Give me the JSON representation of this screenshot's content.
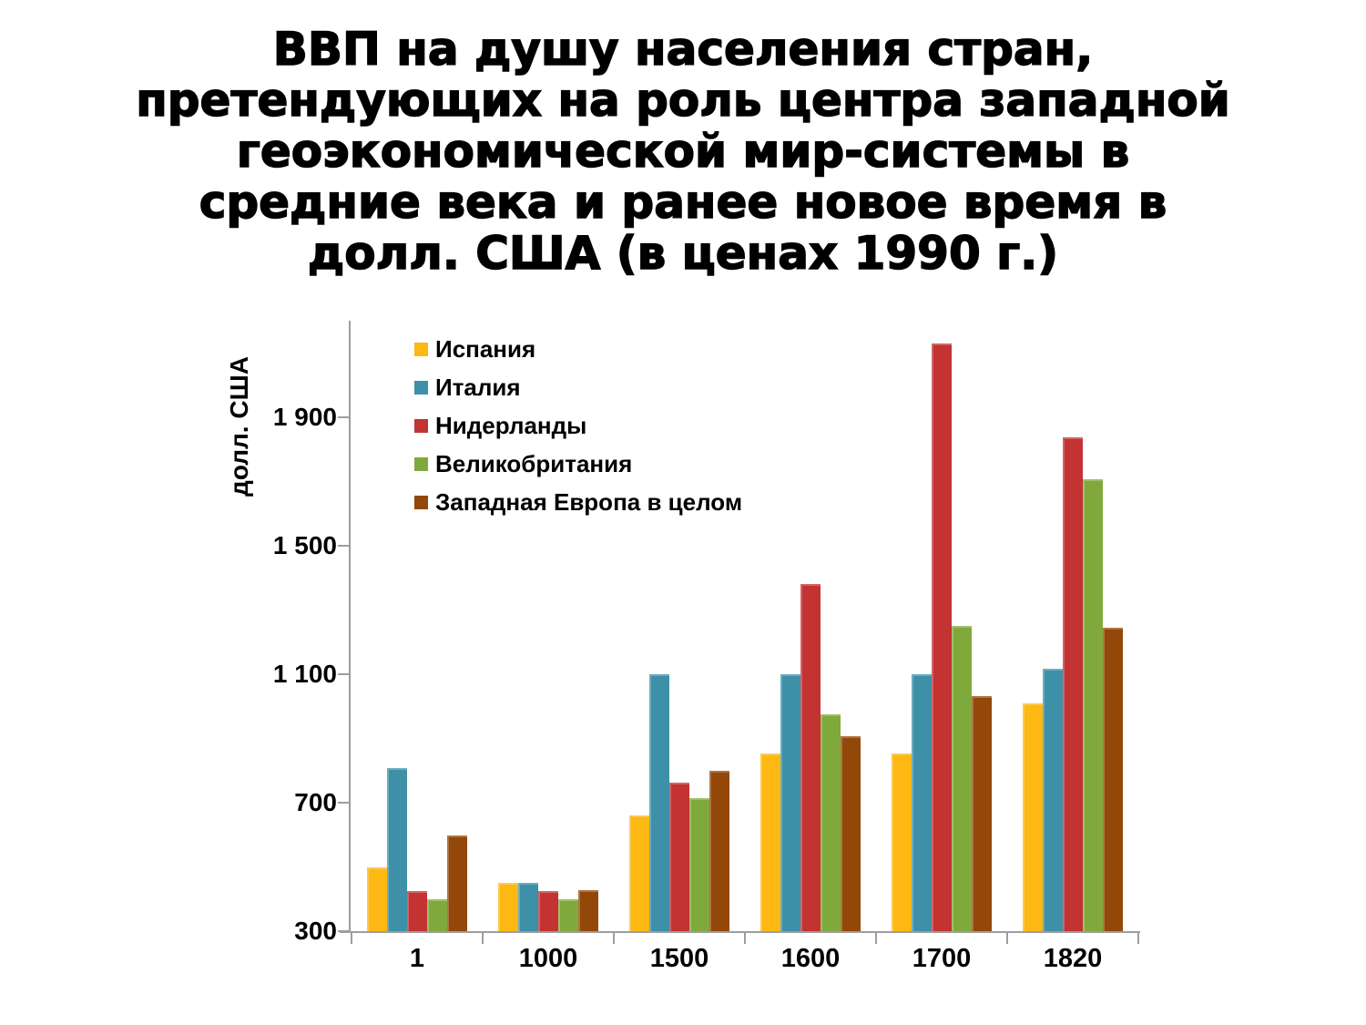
{
  "title": {
    "lines": [
      "ВВП на душу населения стран,",
      "претендующих на роль центра западной",
      "геоэкономической мир-системы в",
      "средние века и ранее новое время в",
      "долл. США (в ценах 1990 г.)"
    ]
  },
  "chart_data": {
    "type": "bar",
    "title": "ВВП на душу населения стран, претендующих на роль центра западной геоэкономической мир-системы в средние века и ранее новое время в долл. США (в ценах 1990 г.)",
    "ylabel": "долл. США",
    "xlabel": "",
    "categories": [
      "1",
      "1000",
      "1500",
      "1600",
      "1700",
      "1820"
    ],
    "series": [
      {
        "name": "Испания",
        "color": "#FDB813",
        "values": [
          498,
          450,
          661,
          853,
          853,
          1008
        ]
      },
      {
        "name": "Италия",
        "color": "#3E90A8",
        "values": [
          809,
          450,
          1100,
          1100,
          1100,
          1117
        ]
      },
      {
        "name": "Нидерланды",
        "color": "#C23331",
        "values": [
          425,
          425,
          761,
          1381,
          2130,
          1838
        ]
      },
      {
        "name": "Великобритания",
        "color": "#80A93C",
        "values": [
          400,
          400,
          714,
          974,
          1250,
          1706
        ]
      },
      {
        "name": "Западная Европа в целом",
        "color": "#934709",
        "values": [
          599,
          427,
          798,
          907,
          1032,
          1243
        ]
      }
    ],
    "ylim": [
      300,
      2200
    ],
    "yticks": [
      300,
      700,
      1100,
      1500,
      1900
    ],
    "ytick_labels": [
      "300",
      "700",
      "1 100",
      "1 500",
      "1 900"
    ],
    "grid": false,
    "legend_position": "top-left-inside",
    "axis_color": "#9E9E9E",
    "text_color": "#000000"
  }
}
